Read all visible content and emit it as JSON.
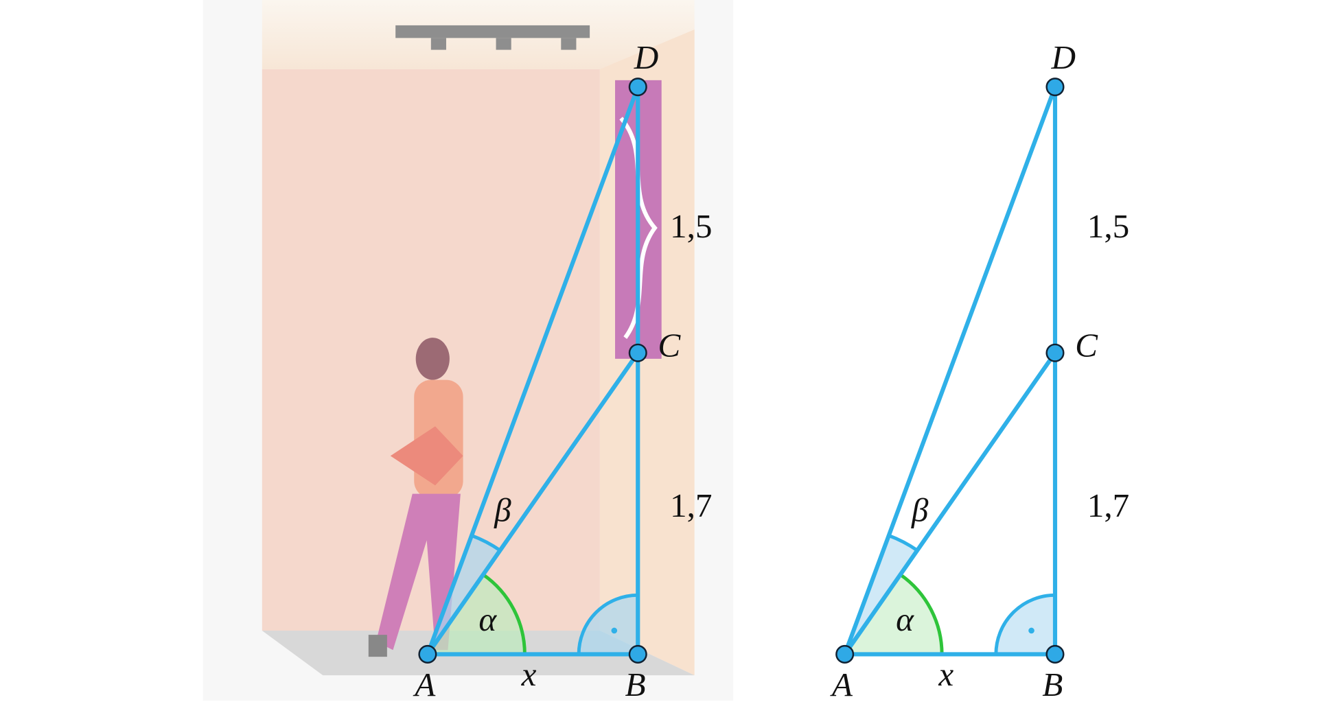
{
  "scene": {
    "points": {
      "A": "A",
      "B": "B",
      "C": "C",
      "D": "D"
    },
    "side_ab": "x",
    "side_bc": "1,7",
    "side_cd": "1,5",
    "angle_alpha": "α",
    "angle_beta": "β"
  },
  "diagram": {
    "points": {
      "A": "A",
      "B": "B",
      "C": "C",
      "D": "D"
    },
    "side_ab": "x",
    "side_bc": "1,7",
    "side_cd": "1,5",
    "angle_alpha": "α",
    "angle_beta": "β"
  }
}
